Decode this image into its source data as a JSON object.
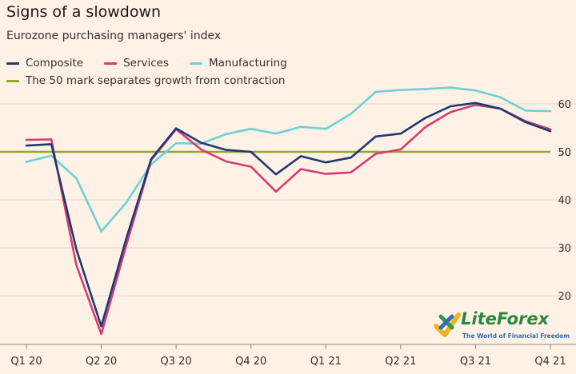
{
  "header": {
    "title": "Signs of a slowdown",
    "subtitle": "Eurozone purchasing managers' index"
  },
  "legend": {
    "composite": "Composite",
    "services": "Services",
    "manufacturing": "Manufacturing",
    "threshold": "The 50 mark separates growth from contraction"
  },
  "colors": {
    "background": "#fff1e5",
    "composite": "#1d3a72",
    "services": "#d43d72",
    "manufacturing": "#6fd0d6",
    "threshold": "#8eaa2a",
    "grid": "#e3d6c9"
  },
  "logo": {
    "name": "LiteForex",
    "tagline": "The World of Financial Freedom",
    "icon": "liteforex-logo-icon"
  },
  "chart_data": {
    "type": "line",
    "title": "Signs of a slowdown",
    "subtitle": "Eurozone purchasing managers' index",
    "x": [
      "2020-01",
      "2020-02",
      "2020-03",
      "2020-04",
      "2020-05",
      "2020-06",
      "2020-07",
      "2020-08",
      "2020-09",
      "2020-10",
      "2020-11",
      "2020-12",
      "2021-01",
      "2021-02",
      "2021-03",
      "2021-04",
      "2021-05",
      "2021-06",
      "2021-07",
      "2021-08",
      "2021-09",
      "2021-10"
    ],
    "x_tick_labels": [
      "Q1 20",
      "Q2 20",
      "Q3 20",
      "Q4 20",
      "Q1 21",
      "Q2 21",
      "Q3 21",
      "Q4 21"
    ],
    "x_tick_positions": [
      "2020-01",
      "2020-04",
      "2020-07",
      "2020-10",
      "2021-01",
      "2021-04",
      "2021-07",
      "2021-10"
    ],
    "ylim": [
      10,
      63
    ],
    "y_ticks": [
      20,
      30,
      40,
      50,
      60
    ],
    "y_axis_side": "right",
    "grid": true,
    "legend_position": "top-left",
    "reference_line": {
      "y": 50,
      "label": "The 50 mark separates growth from contraction"
    },
    "series": [
      {
        "name": "Composite",
        "values": [
          51.3,
          51.6,
          29.7,
          13.6,
          31.9,
          48.5,
          54.9,
          51.9,
          50.4,
          50.0,
          45.3,
          49.1,
          47.8,
          48.8,
          53.2,
          53.8,
          57.1,
          59.5,
          60.2,
          59.0,
          56.2,
          54.3
        ]
      },
      {
        "name": "Services",
        "values": [
          52.5,
          52.6,
          26.4,
          12.0,
          30.5,
          48.3,
          54.7,
          50.5,
          48.0,
          46.9,
          41.7,
          46.4,
          45.4,
          45.7,
          49.6,
          50.5,
          55.2,
          58.3,
          59.8,
          59.0,
          56.4,
          54.7
        ]
      },
      {
        "name": "Manufacturing",
        "values": [
          47.9,
          49.2,
          44.5,
          33.4,
          39.4,
          47.4,
          51.8,
          51.7,
          53.7,
          54.8,
          53.8,
          55.2,
          54.8,
          57.9,
          62.5,
          62.9,
          63.1,
          63.4,
          62.8,
          61.4,
          58.6,
          58.5
        ]
      }
    ]
  }
}
